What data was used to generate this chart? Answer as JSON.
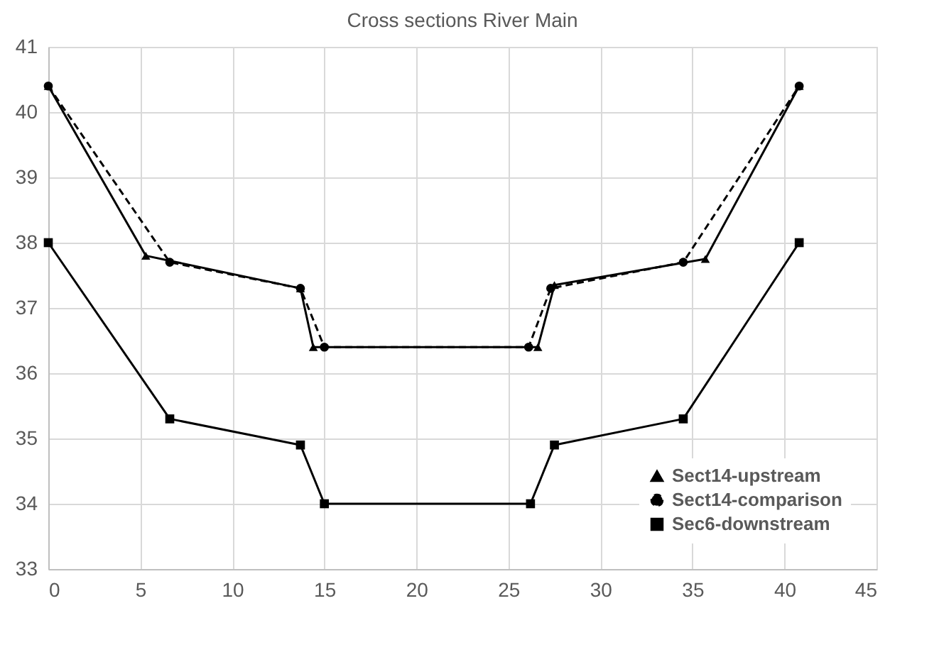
{
  "chart_data": {
    "type": "line",
    "title": "Cross sections  River Main",
    "xlim": [
      0,
      45
    ],
    "xticks": [
      0,
      5,
      10,
      15,
      20,
      25,
      30,
      35,
      40,
      45
    ],
    "ylim": [
      33,
      41
    ],
    "yticks": [
      33,
      34,
      35,
      36,
      37,
      38,
      39,
      40,
      41
    ],
    "grid": true,
    "legend": "bottom right",
    "series": [
      {
        "name": "Sect14-upstream",
        "color": "#000000",
        "marker": "triangle",
        "line_style": "solid",
        "x": [
          0,
          5.3,
          13.7,
          14.4,
          26.6,
          27.5,
          35.7,
          40.8
        ],
        "values": [
          40.4,
          37.8,
          37.3,
          36.4,
          36.4,
          37.35,
          37.75,
          40.4
        ]
      },
      {
        "name": "Sect14-comparison",
        "color": "#000000",
        "marker": "circle",
        "line_style": "dashed",
        "x": [
          0,
          6.6,
          13.7,
          15,
          26.1,
          27.3,
          34.5,
          40.8
        ],
        "values": [
          40.4,
          37.7,
          37.3,
          36.4,
          36.4,
          37.3,
          37.7,
          40.4
        ]
      },
      {
        "name": "Sec6-downstream",
        "color": "#000000",
        "marker": "square",
        "line_style": "solid",
        "x": [
          0,
          6.6,
          13.7,
          15,
          26.2,
          27.5,
          34.5,
          40.8
        ],
        "values": [
          38,
          35.3,
          34.9,
          34,
          34,
          34.9,
          35.3,
          38
        ]
      }
    ]
  }
}
